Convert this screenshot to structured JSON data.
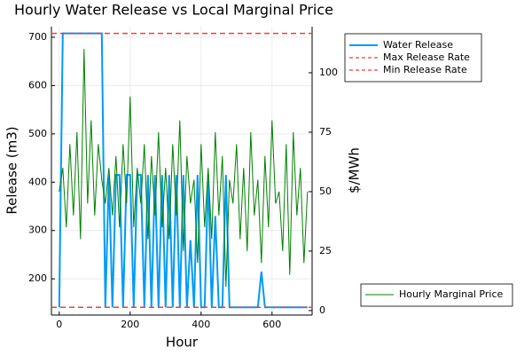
{
  "chart_data": {
    "type": "line",
    "title": "Hourly Water Release vs Local Marginal Price",
    "x_label": "Hour",
    "y_label": "Release (m3)",
    "y2_label": "$/MWh",
    "x": [
      0,
      10,
      20,
      30,
      40,
      50,
      60,
      70,
      80,
      90,
      100,
      110,
      120,
      130,
      140,
      150,
      160,
      170,
      180,
      190,
      200,
      210,
      220,
      230,
      240,
      250,
      260,
      270,
      280,
      290,
      300,
      310,
      320,
      330,
      340,
      350,
      360,
      370,
      380,
      390,
      400,
      410,
      420,
      430,
      440,
      450,
      460,
      470,
      480,
      490,
      500,
      510,
      520,
      530,
      540,
      550,
      560,
      570,
      580,
      590,
      600,
      610,
      620,
      630,
      640,
      650,
      660,
      670,
      680,
      690,
      700
    ],
    "series": [
      {
        "name": "Water Release",
        "color": "#009af9",
        "values": [
          141,
          708,
          708,
          708,
          708,
          708,
          708,
          708,
          708,
          708,
          708,
          708,
          708,
          141,
          415,
          141,
          415,
          415,
          141,
          415,
          415,
          141,
          415,
          415,
          141,
          415,
          141,
          415,
          141,
          415,
          141,
          415,
          141,
          415,
          141,
          415,
          141,
          280,
          141,
          415,
          141,
          141,
          415,
          141,
          330,
          141,
          141,
          415,
          141,
          141,
          141,
          141,
          141,
          141,
          141,
          141,
          141,
          215,
          141,
          141,
          141,
          141,
          141,
          141,
          141,
          141,
          141,
          141,
          141,
          141,
          141
        ]
      },
      {
        "name": "Hourly Marginal Price",
        "color": "#008000",
        "axis": "y2",
        "values": [
          50,
          60,
          35,
          70,
          40,
          75,
          30,
          110,
          45,
          80,
          40,
          70,
          55,
          45,
          60,
          40,
          65,
          35,
          70,
          45,
          90,
          35,
          60,
          45,
          70,
          30,
          65,
          40,
          75,
          35,
          60,
          30,
          70,
          40,
          80,
          25,
          65,
          45,
          55,
          20,
          70,
          35,
          60,
          30,
          75,
          40,
          65,
          10,
          55,
          45,
          70,
          30,
          60,
          25,
          75,
          40,
          55,
          20,
          65,
          35,
          80,
          45,
          50,
          25,
          70,
          15,
          75,
          40,
          60,
          20,
          50
        ]
      }
    ],
    "reference_lines": [
      {
        "name": "Max Release Rate",
        "value": 708,
        "color": "#e8423f"
      },
      {
        "name": "Min Release Rate",
        "value": 141,
        "color": "#e8423f"
      }
    ],
    "xlim": [
      -22,
      713
    ],
    "xticks": [
      0,
      200,
      400,
      600
    ],
    "ylim": [
      125,
      722
    ],
    "yticks": [
      200,
      300,
      400,
      500,
      600,
      700
    ],
    "y2lim": [
      -1.9,
      119.4
    ],
    "y2ticks": [
      0,
      25,
      50,
      75,
      100
    ],
    "grid": true
  }
}
